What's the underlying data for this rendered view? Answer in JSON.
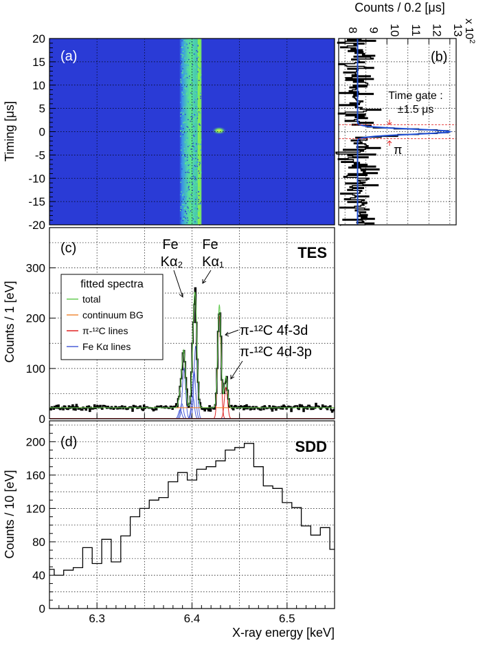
{
  "chart_data": [
    {
      "panel": "(a)",
      "type": "heatmap",
      "ylabel": "Timing [μs]",
      "xlim": [
        6.25,
        6.55
      ],
      "ylim": [
        -20,
        20
      ],
      "yticks": [
        20,
        15,
        10,
        5,
        0,
        -5,
        -10,
        -15,
        -20
      ],
      "colors": {
        "background": "#2a3bd6",
        "band": "#56e08a",
        "band_edge": "#36a8e8",
        "peak": "#f0e34a"
      }
    },
    {
      "panel": "(b)",
      "type": "line",
      "xlabel": "Counts / 0.2 [μs]",
      "multiplier": "x 10",
      "multiplier_exp": "2",
      "xticks": [
        "8",
        "9",
        "10",
        "11",
        "12",
        "13"
      ],
      "xlim": [
        7.7,
        13.3
      ],
      "ylim": [
        -20,
        20
      ],
      "annotation": "Time gate :",
      "annotation2": "±1.5 μs",
      "peak_label": "π",
      "gate": [
        -1.5,
        1.5
      ],
      "baseline": 8.6,
      "peak_value": 13.0,
      "colors": {
        "fit": "#1f4fd6",
        "gate": "#e02020"
      }
    },
    {
      "panel": "(c)",
      "type": "line",
      "tag": "TES",
      "ylabel": "Counts / 1 [eV]",
      "xlim": [
        6.25,
        6.55
      ],
      "ylim": [
        0,
        380
      ],
      "yticks": [
        0,
        100,
        200,
        300
      ],
      "legend_title": "fitted spectra",
      "legend": [
        {
          "name": "total",
          "color": "#66cc55"
        },
        {
          "name": "continuum BG",
          "color": "#f08a3a"
        },
        {
          "name": "π-¹²C lines",
          "color": "#e02020"
        },
        {
          "name": "Fe Kα lines",
          "color": "#4a5ed8"
        }
      ],
      "annotations": [
        "Fe",
        "Kα₂",
        "Fe",
        "Kα₁",
        "π-¹²C 4f-3d",
        "π-¹²C 4d-3p"
      ],
      "background": 22,
      "peaks": {
        "fe_ka1": [
          {
            "x": 6.4039,
            "a": 145
          },
          {
            "x": 6.4022,
            "a": 95
          },
          {
            "x": 6.4008,
            "a": 45
          }
        ],
        "fe_ka2": [
          {
            "x": 6.3916,
            "a": 100
          },
          {
            "x": 6.3893,
            "a": 30
          },
          {
            "x": 6.3875,
            "a": 18
          }
        ],
        "pi_c": [
          {
            "x": 6.4288,
            "a": 205
          },
          {
            "x": 6.4357,
            "a": 62
          }
        ]
      }
    },
    {
      "panel": "(d)",
      "type": "line",
      "tag": "SDD",
      "xlabel": "X-ray energy [keV]",
      "ylabel": "Counts / 10 [eV]",
      "xlim": [
        6.25,
        6.55
      ],
      "ylim": [
        0,
        225
      ],
      "xticks": [
        "6.3",
        "6.4",
        "6.5"
      ],
      "xtick_values": [
        6.3,
        6.4,
        6.5
      ],
      "yticks": [
        0,
        40,
        80,
        120,
        160,
        200
      ],
      "bin_width": 0.01,
      "x_start": 6.25,
      "values": [
        47,
        40,
        46,
        49,
        73,
        54,
        83,
        56,
        87,
        110,
        120,
        130,
        133,
        152,
        163,
        154,
        167,
        170,
        177,
        190,
        193,
        198,
        170,
        147,
        144,
        127,
        121,
        99,
        88,
        97,
        71
      ]
    }
  ]
}
